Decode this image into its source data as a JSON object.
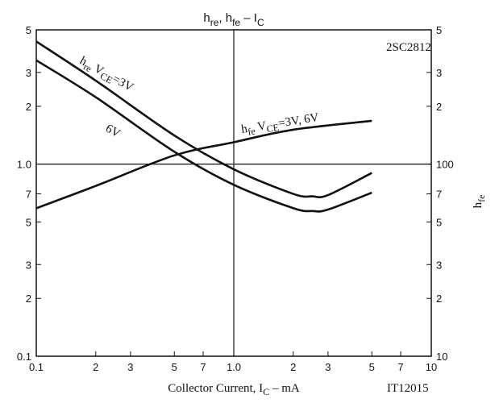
{
  "chart_data": {
    "type": "line",
    "title": [
      {
        "text": "h"
      },
      {
        "text": "re",
        "sub": true
      },
      {
        "text": ", h"
      },
      {
        "text": "fe",
        "sub": true
      },
      {
        "text": "  –  I"
      },
      {
        "text": "C",
        "sub": true
      }
    ],
    "xlabel": [
      {
        "text": "Collector Current, I"
      },
      {
        "text": "C",
        "sub": true
      },
      {
        "text": "  –  mA"
      }
    ],
    "y2label": [
      {
        "text": "h"
      },
      {
        "text": "fe",
        "sub": true
      }
    ],
    "annotations": [
      {
        "parts": [
          {
            "text": "h"
          },
          {
            "text": "re",
            "sub": true
          },
          {
            "text": " V"
          },
          {
            "text": "CE",
            "sub": true
          },
          {
            "text": "=3V"
          }
        ]
      },
      {
        "parts": [
          {
            "text": "6V"
          }
        ]
      },
      {
        "parts": [
          {
            "text": "h"
          },
          {
            "text": "fe",
            "sub": true
          },
          {
            "text": " V"
          },
          {
            "text": "CE",
            "sub": true
          },
          {
            "text": "=3V, 6V"
          }
        ]
      },
      {
        "parts": [
          {
            "text": "2SC2812"
          }
        ]
      },
      {
        "parts": [
          {
            "text": "IT12015"
          }
        ]
      }
    ],
    "log_x": true,
    "log_y": true,
    "grid": "decades",
    "xlim": [
      0.1,
      10
    ],
    "xticks": [
      0.1,
      {
        "value": 0.2,
        "label": "2"
      },
      {
        "value": 0.3,
        "label": "3"
      },
      {
        "value": 0.5,
        "label": "5"
      },
      {
        "value": 0.7,
        "label": "7"
      },
      {
        "value": 1,
        "label": "1.0"
      },
      2,
      3,
      5,
      7,
      10
    ],
    "ylim": [
      0.1,
      5
    ],
    "yticks": [
      0.1,
      {
        "value": 0.2,
        "label": "2"
      },
      {
        "value": 0.3,
        "label": "3"
      },
      {
        "value": 0.5,
        "label": "5"
      },
      {
        "value": 0.7,
        "label": "7"
      },
      {
        "value": 1,
        "label": "1.0"
      },
      2,
      3,
      5
    ],
    "y2lim": [
      10,
      500
    ],
    "y2ticks": [
      10,
      {
        "value": 20,
        "label": "2"
      },
      {
        "value": 30,
        "label": "3"
      },
      {
        "value": 50,
        "label": "5"
      },
      {
        "value": 70,
        "label": "7"
      },
      100,
      {
        "value": 200,
        "label": "2"
      },
      {
        "value": 300,
        "label": "3"
      },
      {
        "value": 500,
        "label": "5"
      }
    ],
    "series": [
      {
        "color": "#111111",
        "x": [
          0.1,
          0.2,
          0.5,
          1,
          2,
          2.5,
          3,
          5
        ],
        "values": [
          4.35,
          2.72,
          1.41,
          0.94,
          0.7,
          0.68,
          0.69,
          0.9
        ]
      },
      {
        "color": "#111111",
        "x": [
          0.1,
          0.2,
          0.5,
          1,
          2,
          2.5,
          3,
          5
        ],
        "values": [
          3.47,
          2.23,
          1.16,
          0.78,
          0.59,
          0.57,
          0.58,
          0.71
        ]
      },
      {
        "color": "#111111",
        "axis": "y2",
        "x": [
          0.1,
          0.2,
          0.5,
          1,
          2,
          5
        ],
        "values": [
          58.9,
          77,
          111,
          130,
          151,
          168
        ]
      }
    ]
  }
}
